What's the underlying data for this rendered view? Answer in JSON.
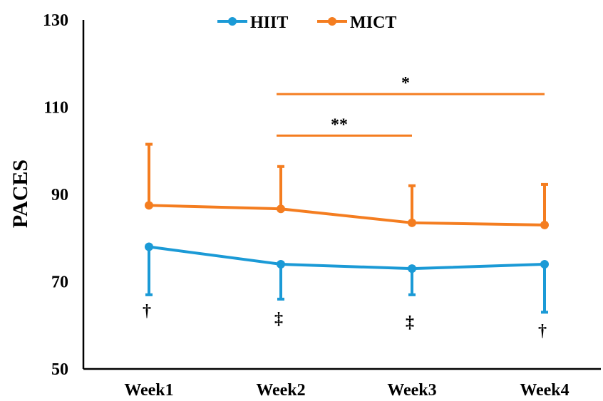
{
  "chart_data": {
    "type": "line",
    "title": "",
    "xlabel": "",
    "ylabel": "PACES",
    "categories": [
      "Week1",
      "Week2",
      "Week3",
      "Week4"
    ],
    "ylim": [
      50,
      130
    ],
    "yticks": [
      50,
      70,
      90,
      110,
      130
    ],
    "grid": false,
    "legend_position": "top-center",
    "series": [
      {
        "name": "HIIT",
        "color": "#1b9ad6",
        "values": [
          78,
          74,
          73,
          74
        ],
        "error_lower": [
          11,
          8,
          6,
          11
        ],
        "error_direction": "down",
        "markers": [
          "†",
          "‡",
          "‡",
          "†"
        ]
      },
      {
        "name": "MICT",
        "color": "#f47d20",
        "values": [
          87.5,
          86.7,
          83.5,
          83
        ],
        "error_upper": [
          14,
          9.7,
          8.5,
          9.3
        ],
        "error_direction": "up"
      }
    ],
    "significance": [
      {
        "from": "Week2",
        "to": "Week4",
        "label": "*",
        "y": 113,
        "color": "#f47d20"
      },
      {
        "from": "Week2",
        "to": "Week3",
        "label": "**",
        "y": 103.5,
        "color": "#f47d20"
      }
    ]
  }
}
